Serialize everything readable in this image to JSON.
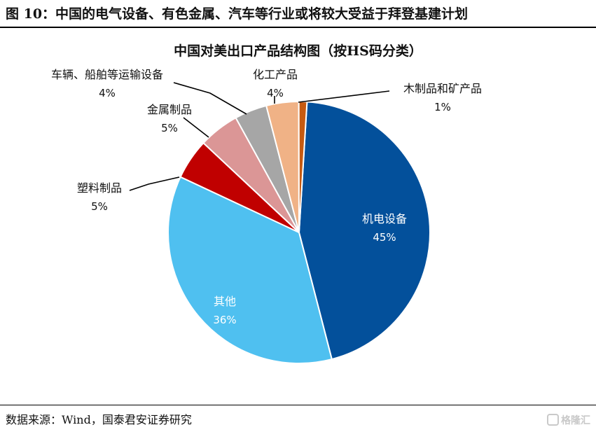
{
  "figure": {
    "header": "图 10：中国的电气设备、有色金属、汽车等行业或将较大受益于拜登基建计划",
    "source": "数据来源：Wind，国泰君安证券研究",
    "watermark": "格隆汇"
  },
  "chart_data": {
    "type": "pie",
    "title": "中国对美出口产品结构图（按HS码分类）",
    "slices": [
      {
        "name": "机电设备",
        "label": "45%",
        "value": 45,
        "color": "#03509b"
      },
      {
        "name": "其他",
        "label": "36%",
        "value": 36,
        "color": "#4fc0f0"
      },
      {
        "name": "塑料制品",
        "label": "5%",
        "value": 5,
        "color": "#c00000"
      },
      {
        "name": "金属制品",
        "label": "5%",
        "value": 5,
        "color": "#db9696"
      },
      {
        "name": "车辆、船舶等运输设备",
        "label": "4%",
        "value": 4,
        "color": "#a6a6a6"
      },
      {
        "name": "化工产品",
        "label": "4%",
        "value": 4,
        "color": "#f0b286"
      },
      {
        "name": "木制品和矿产品",
        "label": "1%",
        "value": 1,
        "color": "#c55a11"
      }
    ]
  }
}
